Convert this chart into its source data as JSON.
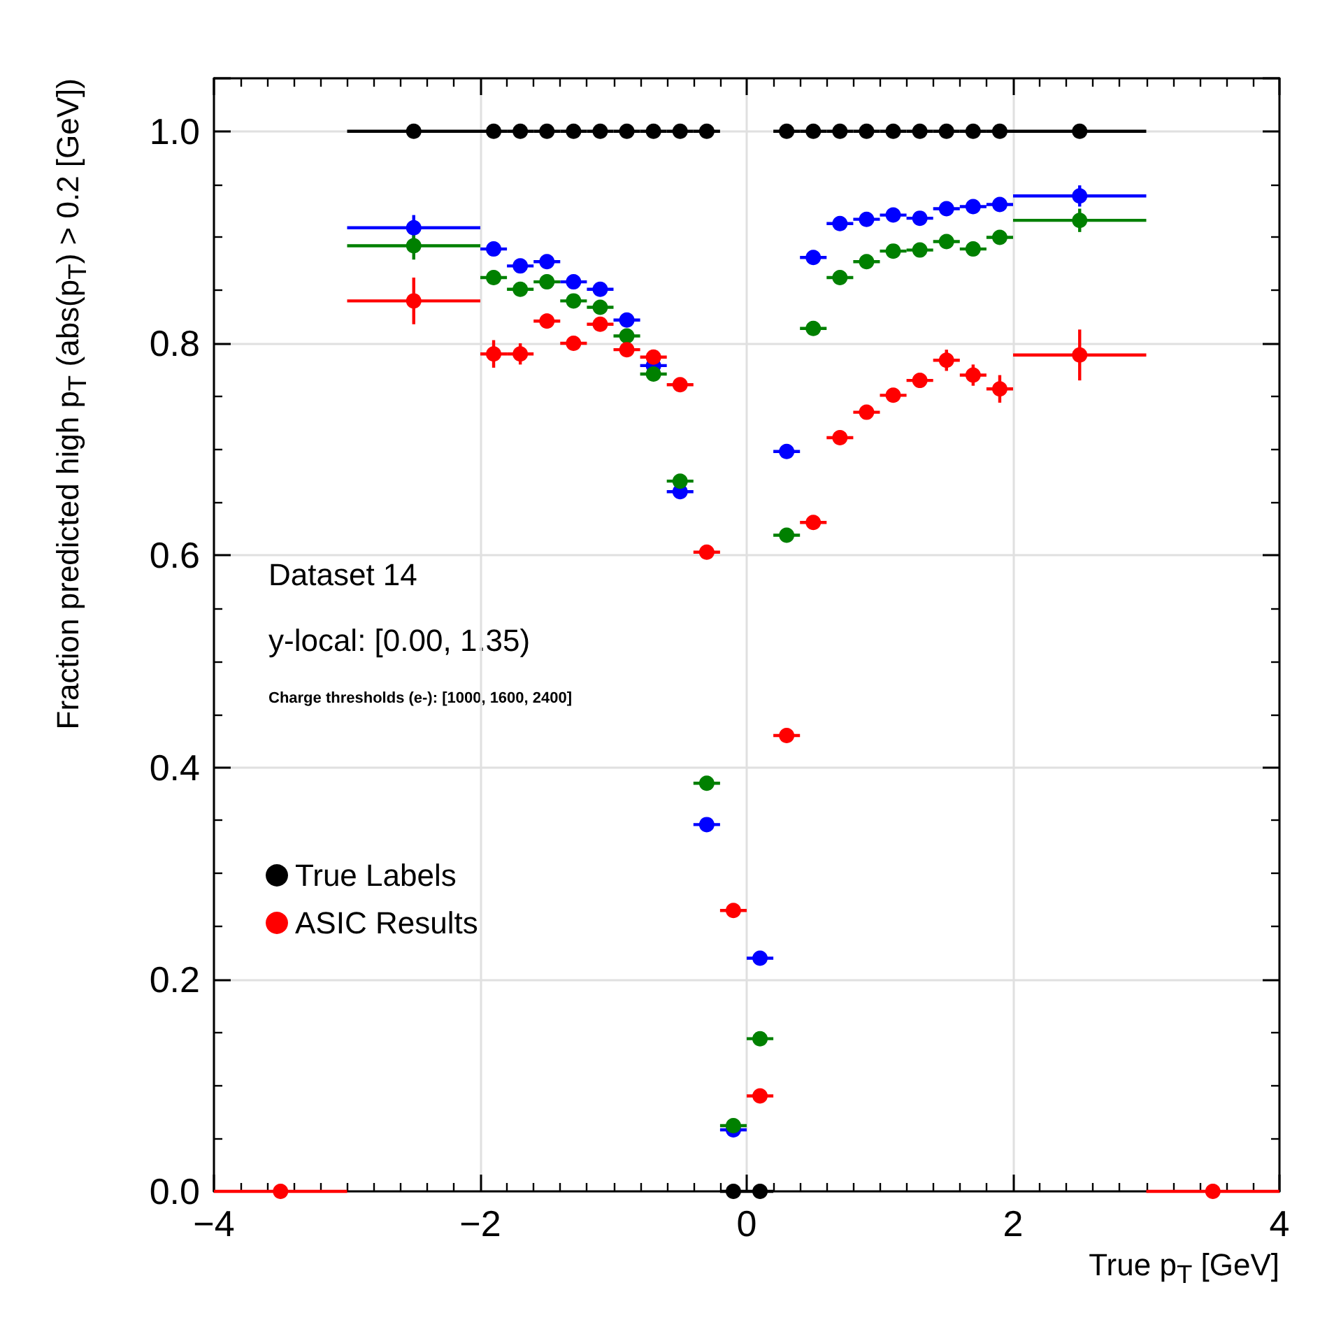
{
  "chart_data": {
    "type": "scatter",
    "xlabel": "True p$_{T}$ [GeV]",
    "ylabel": "Fraction predicted high p$_{T}$ (abs(p$_{T}$) > 0.2 [GeV])",
    "annotations": [
      "Dataset 14",
      "y-local: [0.00, 1.35)",
      "Charge thresholds (e-): [1000, 1600, 2400]"
    ],
    "x": [
      -3.5,
      -2.5,
      -1.9,
      -1.7,
      -1.5,
      -1.3,
      -1.1,
      -0.9,
      -0.7,
      -0.5,
      -0.3,
      -0.1,
      0.1,
      0.3,
      0.5,
      0.7,
      0.9,
      1.1,
      1.3,
      1.5,
      1.7,
      1.9,
      2.5,
      3.5
    ],
    "series": [
      {
        "name": "True Labels",
        "color": "#000000",
        "values": [
          null,
          1,
          1,
          1,
          1,
          1,
          1,
          1,
          1,
          1,
          1,
          0,
          0,
          1,
          1,
          1,
          1,
          1,
          1,
          1,
          1,
          1,
          1,
          null
        ],
        "xerrors": [
          null,
          0.5,
          0.1,
          0.1,
          0.1,
          0.1,
          0.1,
          0.1,
          0.1,
          0.1,
          0.1,
          0.1,
          0.1,
          0.1,
          0.1,
          0.1,
          0.1,
          0.1,
          0.1,
          0.1,
          0.1,
          0.1,
          0.5,
          null
        ]
      },
      {
        "color": "#0000ff",
        "values": [
          null,
          0.909,
          0.889,
          0.873,
          0.877,
          0.858,
          0.851,
          0.822,
          0.779,
          0.66,
          0.346,
          0.058,
          0.22,
          0.698,
          0.881,
          0.913,
          0.917,
          0.921,
          0.918,
          0.927,
          0.929,
          0.931,
          0.939,
          null
        ],
        "errors": [
          null,
          0.012,
          0.004,
          0.004,
          0.004,
          0.004,
          0.004,
          0.004,
          0.004,
          0.004,
          0.004,
          0.004,
          0.004,
          0.004,
          0.004,
          0.004,
          0.004,
          0.004,
          0.004,
          0.004,
          0.004,
          0.004,
          0.01,
          null
        ],
        "xerrors": [
          null,
          0.5,
          0.1,
          0.1,
          0.1,
          0.1,
          0.1,
          0.1,
          0.1,
          0.1,
          0.1,
          0.1,
          0.1,
          0.1,
          0.1,
          0.1,
          0.1,
          0.1,
          0.1,
          0.1,
          0.1,
          0.1,
          0.5,
          null
        ]
      },
      {
        "color": "#008000",
        "values": [
          null,
          0.892,
          0.862,
          0.851,
          0.858,
          0.84,
          0.834,
          0.807,
          0.771,
          0.67,
          0.385,
          0.062,
          0.144,
          0.619,
          0.814,
          0.862,
          0.877,
          0.887,
          0.888,
          0.896,
          0.889,
          0.9,
          0.916,
          null
        ],
        "errors": [
          null,
          0.013,
          0.004,
          0.004,
          0.004,
          0.004,
          0.004,
          0.004,
          0.004,
          0.004,
          0.004,
          0.004,
          0.004,
          0.004,
          0.004,
          0.004,
          0.004,
          0.004,
          0.004,
          0.004,
          0.004,
          0.004,
          0.011,
          null
        ],
        "xerrors": [
          null,
          0.5,
          0.1,
          0.1,
          0.1,
          0.1,
          0.1,
          0.1,
          0.1,
          0.1,
          0.1,
          0.1,
          0.1,
          0.1,
          0.1,
          0.1,
          0.1,
          0.1,
          0.1,
          0.1,
          0.1,
          0.1,
          0.5,
          null
        ]
      },
      {
        "name": "ASIC Results",
        "color": "#ff0000",
        "values": [
          0,
          0.84,
          0.79,
          0.79,
          0.821,
          0.8,
          0.818,
          0.794,
          0.787,
          0.761,
          0.603,
          0.265,
          0.09,
          0.43,
          0.631,
          0.711,
          0.735,
          0.751,
          0.765,
          0.784,
          0.77,
          0.757,
          0.789,
          0
        ],
        "errors": [
          null,
          0.022,
          0.013,
          0.01,
          0.007,
          0.006,
          0.006,
          0.006,
          0.006,
          0.005,
          0.005,
          0.004,
          0.004,
          0.005,
          0.005,
          0.005,
          0.006,
          0.006,
          0.007,
          0.01,
          0.01,
          0.013,
          0.024,
          null
        ],
        "xerrors": [
          0.5,
          0.5,
          0.1,
          0.1,
          0.1,
          0.1,
          0.1,
          0.1,
          0.1,
          0.1,
          0.1,
          0.1,
          0.1,
          0.1,
          0.1,
          0.1,
          0.1,
          0.1,
          0.1,
          0.1,
          0.1,
          0.1,
          0.5,
          0.5
        ]
      }
    ],
    "xlim": [
      -4,
      4
    ],
    "xticks": [
      {
        "value": -4,
        "label": "−4"
      },
      {
        "value": -2,
        "label": "−2"
      },
      0,
      2,
      4
    ],
    "ylim": [
      0,
      1.05
    ],
    "yticks": [
      {
        "value": 0,
        "label": "0.0"
      },
      0.2,
      0.4,
      0.6,
      0.8,
      {
        "value": 1,
        "label": "1.0"
      }
    ],
    "grid": true,
    "legend": "bottom left",
    "marker": "circle"
  }
}
